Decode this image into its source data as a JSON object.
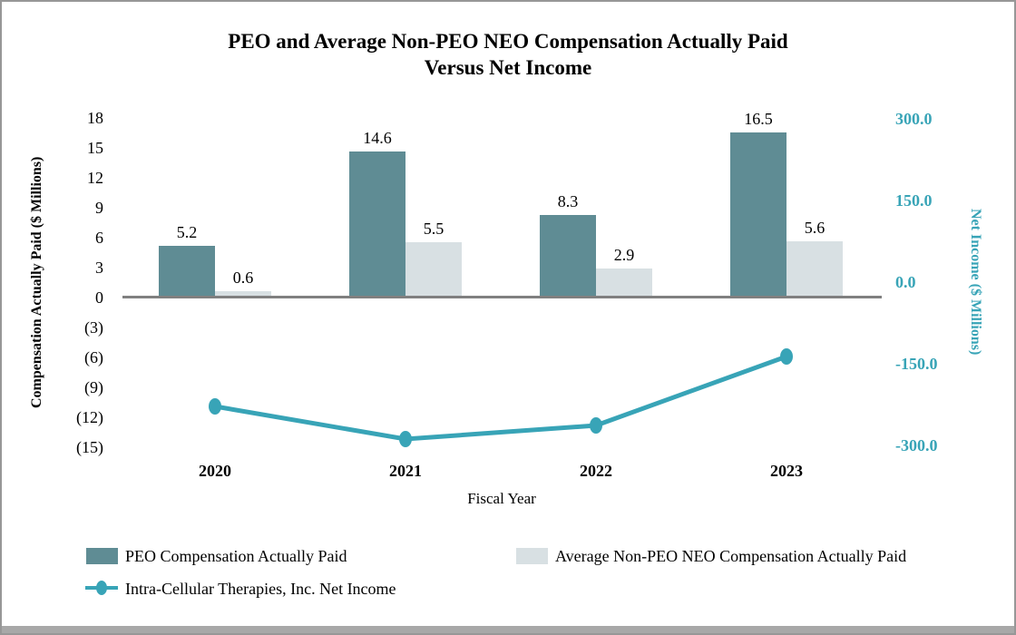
{
  "chart_data": {
    "type": "combo-bar-line",
    "title_line1": "PEO and Average Non-PEO NEO Compensation Actually Paid",
    "title_line2": "Versus Net Income",
    "xlabel": "Fiscal Year",
    "categories": [
      "2020",
      "2021",
      "2022",
      "2023"
    ],
    "series": [
      {
        "name": "PEO Compensation Actually Paid",
        "type": "bar",
        "axis": "left",
        "color": "#5F8C94",
        "values": [
          5.2,
          14.6,
          8.3,
          16.5
        ]
      },
      {
        "name": "Average Non-PEO NEO Compensation Actually Paid",
        "type": "bar",
        "axis": "left",
        "color": "#D8E0E3",
        "values": [
          0.6,
          5.5,
          2.9,
          5.6
        ]
      },
      {
        "name": "Intra-Cellular Therapies, Inc. Net Income",
        "type": "line",
        "axis": "right",
        "color": "#38A4B7",
        "values": [
          -225,
          -285,
          -260,
          -135
        ]
      }
    ],
    "left_axis": {
      "label": "Compensation Actually Paid ($ Millions)",
      "ticks": [
        "18",
        "15",
        "12",
        "9",
        "6",
        "3",
        "0",
        "(3)",
        "(6)",
        "(9)",
        "(12)",
        "(15)"
      ],
      "max": 18,
      "min": -15,
      "tick_step": 3
    },
    "right_axis": {
      "label": "Net Income ($ Millions)",
      "ticks": [
        "300.0",
        "150.0",
        "0.0",
        "-150.0",
        "-300.0"
      ],
      "max": 300,
      "min": -300,
      "tick_step": 150
    },
    "grid": false,
    "legend_position": "bottom"
  },
  "colors": {
    "bar_peo": "#5F8C94",
    "bar_non_peo": "#D8E0E3",
    "line_net_income": "#38A4B7",
    "axis_line": "#808080",
    "text": "#000000"
  }
}
